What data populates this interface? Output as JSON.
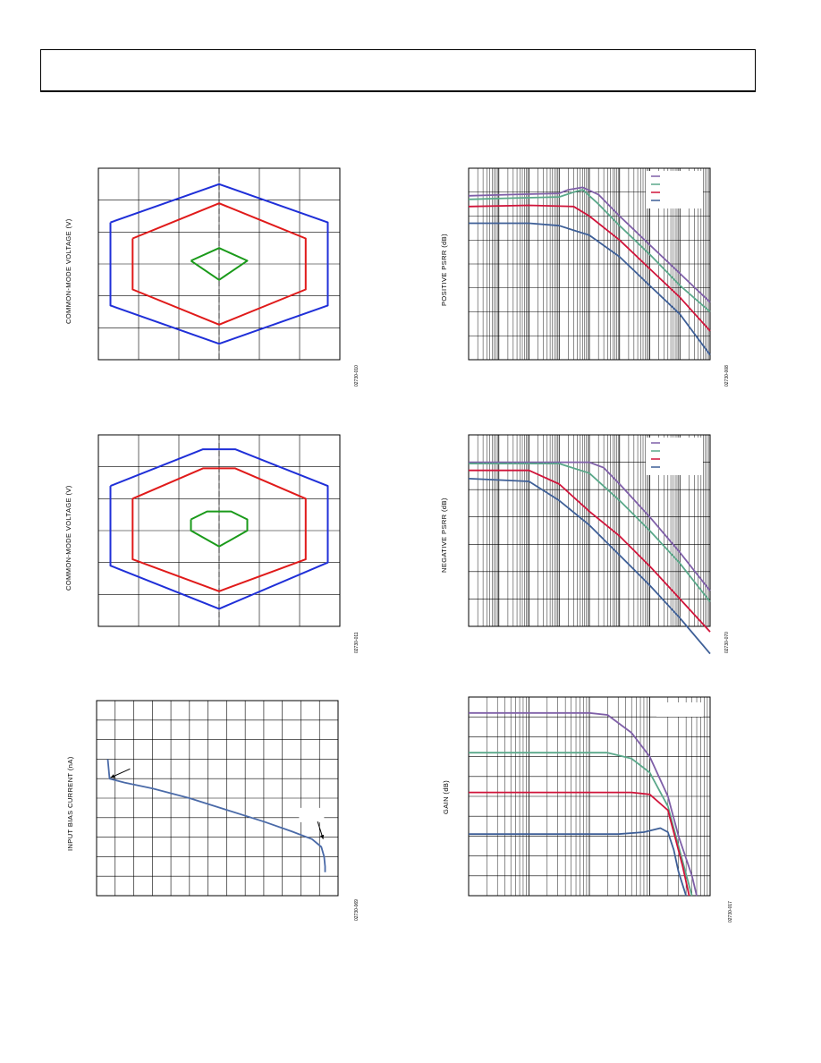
{
  "page": {
    "header": ""
  },
  "charts": [
    {
      "id": "p1",
      "ylabel": "COMMON-MODE VOLTAGE (V)",
      "figid": "02730-010"
    },
    {
      "id": "p2",
      "ylabel": "POSITIVE PSRR (dB)",
      "figid": "02730-008"
    },
    {
      "id": "p3",
      "ylabel": "COMMON-MODE VOLTAGE (V)",
      "figid": "02730-011"
    },
    {
      "id": "p4",
      "ylabel": "NEGATIVE PSRR (dB)",
      "figid": "02730-070"
    },
    {
      "id": "p5",
      "ylabel": "INPUT BIAS CURRENT (nA)",
      "figid": "02730-069"
    },
    {
      "id": "p6",
      "ylabel": "GAIN (dB)",
      "figid": "02730-017"
    }
  ],
  "chart_data": [
    {
      "type": "line",
      "ylabel": "COMMON-MODE VOLTAGE (V)",
      "grid": "6x6",
      "xlim": [
        0,
        6
      ],
      "ylim": [
        0,
        6
      ],
      "series": [
        {
          "color": "#1f2fd8",
          "points": [
            [
              0.3,
              4.3
            ],
            [
              3,
              5.5
            ],
            [
              5.7,
              4.3
            ],
            [
              5.7,
              1.7
            ],
            [
              3,
              0.5
            ],
            [
              0.3,
              1.7
            ],
            [
              0.3,
              4.3
            ]
          ]
        },
        {
          "color": "#e01a1a",
          "points": [
            [
              0.85,
              3.8
            ],
            [
              3,
              4.9
            ],
            [
              5.15,
              3.8
            ],
            [
              5.15,
              2.2
            ],
            [
              3,
              1.1
            ],
            [
              0.85,
              2.2
            ],
            [
              0.85,
              3.8
            ]
          ]
        },
        {
          "color": "#1a9a1a",
          "points": [
            [
              2.3,
              3.1
            ],
            [
              3,
              3.5
            ],
            [
              3.7,
              3.1
            ],
            [
              3,
              2.5
            ],
            [
              2.3,
              3.1
            ]
          ]
        }
      ]
    },
    {
      "type": "line",
      "ylabel": "POSITIVE PSRR (dB)",
      "xscale": "log",
      "xlim": [
        1,
        100000000
      ],
      "ylim": [
        0,
        8
      ],
      "legend": "top-right",
      "series": [
        {
          "color": "#7f5fa8",
          "points": [
            [
              1,
              6.85
            ],
            [
              30,
              6.9
            ],
            [
              1000,
              6.95
            ],
            [
              2000,
              7.1
            ],
            [
              6000,
              7.2
            ],
            [
              20000,
              6.9
            ],
            [
              100000,
              6.0
            ],
            [
              1000000,
              4.8
            ],
            [
              10000000,
              3.6
            ],
            [
              100000000,
              2.4
            ]
          ]
        },
        {
          "color": "#5aa88a",
          "points": [
            [
              1,
              6.7
            ],
            [
              30,
              6.75
            ],
            [
              1000,
              6.8
            ],
            [
              3000,
              7.0
            ],
            [
              6000,
              7.1
            ],
            [
              20000,
              6.5
            ],
            [
              100000,
              5.6
            ],
            [
              1000000,
              4.4
            ],
            [
              10000000,
              3.1
            ],
            [
              100000000,
              2.0
            ]
          ]
        },
        {
          "color": "#d0143a",
          "points": [
            [
              1,
              6.4
            ],
            [
              100,
              6.45
            ],
            [
              3000,
              6.4
            ],
            [
              10000,
              6.0
            ],
            [
              100000,
              5.0
            ],
            [
              1000000,
              3.8
            ],
            [
              10000000,
              2.6
            ],
            [
              100000000,
              1.2
            ]
          ]
        },
        {
          "color": "#3e5f97",
          "points": [
            [
              1,
              5.7
            ],
            [
              100,
              5.7
            ],
            [
              1000,
              5.6
            ],
            [
              10000,
              5.2
            ],
            [
              100000,
              4.3
            ],
            [
              1000000,
              3.1
            ],
            [
              10000000,
              1.9
            ],
            [
              100000000,
              0.2
            ]
          ]
        }
      ]
    },
    {
      "type": "line",
      "ylabel": "COMMON-MODE VOLTAGE (V)",
      "grid": "6x6",
      "xlim": [
        0,
        6
      ],
      "ylim": [
        0,
        6
      ],
      "series": [
        {
          "color": "#1f2fd8",
          "points": [
            [
              0.3,
              4.4
            ],
            [
              2.6,
              5.55
            ],
            [
              3.4,
              5.55
            ],
            [
              5.7,
              4.4
            ],
            [
              5.7,
              2.0
            ],
            [
              3,
              0.55
            ],
            [
              0.3,
              1.9
            ],
            [
              0.3,
              4.4
            ]
          ]
        },
        {
          "color": "#e01a1a",
          "points": [
            [
              0.85,
              4.0
            ],
            [
              2.6,
              4.95
            ],
            [
              3.4,
              4.95
            ],
            [
              5.15,
              4.0
            ],
            [
              5.15,
              2.1
            ],
            [
              3,
              1.1
            ],
            [
              0.85,
              2.1
            ],
            [
              0.85,
              4.0
            ]
          ]
        },
        {
          "color": "#1a9a1a",
          "points": [
            [
              2.3,
              3.35
            ],
            [
              2.7,
              3.6
            ],
            [
              3.3,
              3.6
            ],
            [
              3.7,
              3.35
            ],
            [
              3.7,
              3.0
            ],
            [
              3,
              2.5
            ],
            [
              2.3,
              3.0
            ],
            [
              2.3,
              3.35
            ]
          ]
        }
      ]
    },
    {
      "type": "line",
      "ylabel": "NEGATIVE PSRR (dB)",
      "xscale": "log",
      "xlim": [
        1,
        100000000
      ],
      "ylim": [
        0,
        7
      ],
      "legend": "top-right",
      "series": [
        {
          "color": "#7f5fa8",
          "points": [
            [
              1,
              6.0
            ],
            [
              10000,
              6.0
            ],
            [
              30000,
              5.8
            ],
            [
              100000,
              5.2
            ],
            [
              1000000,
              4.0
            ],
            [
              10000000,
              2.7
            ],
            [
              100000000,
              1.3
            ]
          ]
        },
        {
          "color": "#5aa88a",
          "points": [
            [
              1,
              5.95
            ],
            [
              1000,
              5.95
            ],
            [
              10000,
              5.6
            ],
            [
              100000,
              4.6
            ],
            [
              1000000,
              3.5
            ],
            [
              10000000,
              2.3
            ],
            [
              100000000,
              0.9
            ]
          ]
        },
        {
          "color": "#d0143a",
          "points": [
            [
              1,
              5.7
            ],
            [
              100,
              5.7
            ],
            [
              1000,
              5.2
            ],
            [
              10000,
              4.2
            ],
            [
              100000,
              3.3
            ],
            [
              1000000,
              2.2
            ],
            [
              10000000,
              1.0
            ],
            [
              100000000,
              -0.2
            ]
          ]
        },
        {
          "color": "#3e5f97",
          "points": [
            [
              1,
              5.4
            ],
            [
              100,
              5.3
            ],
            [
              1000,
              4.6
            ],
            [
              10000,
              3.7
            ],
            [
              100000,
              2.6
            ],
            [
              1000000,
              1.5
            ],
            [
              10000000,
              0.3
            ],
            [
              100000000,
              -1.0
            ]
          ]
        }
      ]
    },
    {
      "type": "line",
      "ylabel": "INPUT BIAS CURRENT (nA)",
      "grid": "13x10",
      "xlim": [
        0,
        13
      ],
      "ylim": [
        0,
        10
      ],
      "series": [
        {
          "color": "#4a6aa8",
          "points": [
            [
              0.6,
              7.0
            ],
            [
              0.7,
              6.0
            ],
            [
              1.5,
              5.8
            ],
            [
              3,
              5.5
            ],
            [
              5,
              5.0
            ],
            [
              7,
              4.4
            ],
            [
              9,
              3.8
            ],
            [
              10.5,
              3.3
            ],
            [
              11.6,
              2.9
            ],
            [
              12.1,
              2.5
            ],
            [
              12.25,
              2.0
            ],
            [
              12.3,
              1.5
            ],
            [
              12.3,
              1.2
            ]
          ]
        }
      ],
      "annotations": [
        {
          "type": "arrow",
          "from": [
            1.8,
            6.5
          ],
          "to": [
            0.75,
            6.05
          ]
        },
        {
          "type": "arrow",
          "from": [
            11.9,
            3.8
          ],
          "to": [
            12.2,
            2.9
          ]
        }
      ]
    },
    {
      "type": "line",
      "ylabel": "GAIN (dB)",
      "xscale": "log",
      "xlim": [
        1,
        10000
      ],
      "ylim": [
        0,
        10
      ],
      "legend": "top-right",
      "series": [
        {
          "color": "#7f5fa8",
          "points": [
            [
              1,
              9.2
            ],
            [
              100,
              9.2
            ],
            [
              200,
              9.1
            ],
            [
              500,
              8.2
            ],
            [
              1000,
              7.0
            ],
            [
              2000,
              5.0
            ],
            [
              3000,
              3.0
            ],
            [
              5000,
              1.0
            ],
            [
              6000,
              0.0
            ]
          ]
        },
        {
          "color": "#5aa88a",
          "points": [
            [
              1,
              7.2
            ],
            [
              200,
              7.2
            ],
            [
              500,
              6.9
            ],
            [
              1000,
              6.2
            ],
            [
              2000,
              4.5
            ],
            [
              3000,
              2.5
            ],
            [
              4500,
              0.5
            ],
            [
              5000,
              0.0
            ]
          ]
        },
        {
          "color": "#d0143a",
          "points": [
            [
              1,
              5.2
            ],
            [
              500,
              5.2
            ],
            [
              1000,
              5.1
            ],
            [
              2000,
              4.3
            ],
            [
              2600,
              3.0
            ],
            [
              3500,
              1.5
            ],
            [
              4500,
              0.0
            ]
          ]
        },
        {
          "color": "#3e5f97",
          "points": [
            [
              1,
              3.1
            ],
            [
              300,
              3.1
            ],
            [
              800,
              3.2
            ],
            [
              1500,
              3.4
            ],
            [
              2000,
              3.2
            ],
            [
              2500,
              2.3
            ],
            [
              3000,
              1.2
            ],
            [
              4000,
              0.0
            ]
          ]
        }
      ]
    }
  ]
}
